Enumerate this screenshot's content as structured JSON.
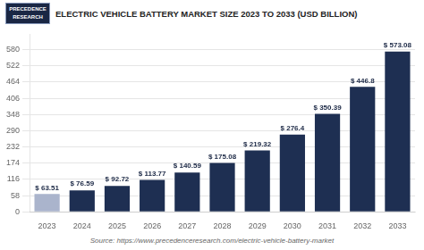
{
  "chart_data": {
    "type": "bar",
    "title": "ELECTRIC VEHICLE BATTERY MARKET SIZE 2023 TO 2033 (USD BILLION)",
    "annotations": [
      "PRECEDENCE",
      "RESEARCH",
      "Source: https://www.precedenceresearch.com/electric-vehicle-battery-market"
    ],
    "categories": [
      "2023",
      "2024",
      "2025",
      "2026",
      "2027",
      "2028",
      "2029",
      "2030",
      "2031",
      "2032",
      "2033"
    ],
    "values": [
      63.51,
      76.59,
      92.72,
      113.77,
      140.59,
      175.08,
      219.32,
      276.4,
      350.39,
      446.8,
      573.08
    ],
    "value_labels": [
      "$ 63.51",
      "$ 76.59",
      "$ 92.72",
      "$ 113.77",
      "$ 140.59",
      "$ 175.08",
      "$ 219.32",
      "$ 276.4",
      "$ 350.39",
      "$ 446.8",
      "$ 573.08"
    ],
    "data_labels": true,
    "colors": [
      "#aab4cc",
      "#1e2f52",
      "#1e2f52",
      "#1e2f52",
      "#1e2f52",
      "#1e2f52",
      "#1e2f52",
      "#1e2f52",
      "#1e2f52",
      "#1e2f52",
      "#1e2f52"
    ],
    "ylim": [
      0,
      635
    ],
    "yticks": [
      0,
      58,
      116,
      174,
      232,
      290,
      348,
      406,
      464,
      522,
      580
    ],
    "grid": true
  }
}
